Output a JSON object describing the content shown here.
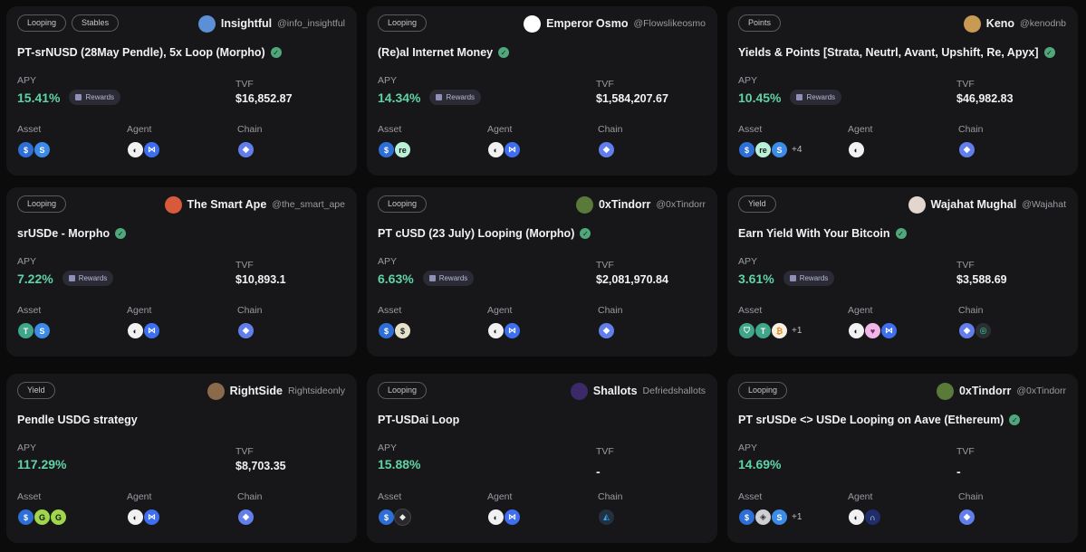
{
  "labels": {
    "apy": "APY",
    "tvf": "TVF",
    "asset": "Asset",
    "agent": "Agent",
    "chain": "Chain",
    "rewards": "Rewards"
  },
  "colors": {
    "apy_green": "#5fd3a6",
    "card_bg": "#17171a",
    "page_bg": "#0b0b0c",
    "verified": "#4fa77b"
  },
  "cards": [
    {
      "tags": [
        "Looping",
        "Stables"
      ],
      "author": "Insightful",
      "handle": "@info_insightful",
      "avatar_color": "#5b8fd6",
      "title": "PT-srNUSD (28May Pendle), 5x Loop (Morpho)",
      "verified": true,
      "apy": "15.41%",
      "rewards": true,
      "tvf": "$16,852.87",
      "assets": [
        "usd-coin-icon",
        "sr-usd-icon"
      ],
      "assets_more": "",
      "agents": [
        "agent-icon",
        "morpho-icon"
      ],
      "chains": [
        "ethereum-icon"
      ]
    },
    {
      "tags": [
        "Looping"
      ],
      "author": "Emperor Osmo",
      "handle": "@Flowslikeosmo",
      "avatar_color": "#ffffff",
      "title": "(Re)al Internet Money",
      "verified": true,
      "apy": "14.34%",
      "rewards": true,
      "tvf": "$1,584,207.67",
      "assets": [
        "usd-coin-icon",
        "re-icon"
      ],
      "assets_more": "",
      "agents": [
        "agent-icon",
        "morpho-icon"
      ],
      "chains": [
        "ethereum-icon"
      ]
    },
    {
      "tags": [
        "Points"
      ],
      "author": "Keno",
      "handle": "@kenodnb",
      "avatar_color": "#c89a52",
      "title": "Yields & Points [Strata, Neutrl, Avant, Upshift, Re, Apyx]",
      "verified": true,
      "apy": "10.45%",
      "rewards": true,
      "tvf": "$46,982.83",
      "assets": [
        "usd-coin-icon",
        "re-icon",
        "sr-usd-icon"
      ],
      "assets_more": "+4",
      "agents": [
        "agent-icon"
      ],
      "chains": [
        "ethereum-icon"
      ]
    },
    {
      "tags": [
        "Looping"
      ],
      "author": "The Smart Ape",
      "handle": "@the_smart_ape",
      "avatar_color": "#d95a3a",
      "title": "srUSDe - Morpho",
      "verified": true,
      "apy": "7.22%",
      "rewards": true,
      "tvf": "$10,893.1",
      "assets": [
        "tether-icon",
        "sr-usd-icon"
      ],
      "assets_more": "",
      "agents": [
        "agent-icon",
        "morpho-icon"
      ],
      "chains": [
        "ethereum-icon"
      ]
    },
    {
      "tags": [
        "Looping"
      ],
      "author": "0xTindorr",
      "handle": "@0xTindorr",
      "avatar_color": "#5a7a3a",
      "title": "PT cUSD (23 July) Looping (Morpho)",
      "verified": true,
      "apy": "6.63%",
      "rewards": true,
      "tvf": "$2,081,970.84",
      "assets": [
        "usd-coin-icon",
        "cusd-icon"
      ],
      "assets_more": "",
      "agents": [
        "agent-icon",
        "morpho-icon"
      ],
      "chains": [
        "ethereum-icon"
      ]
    },
    {
      "tags": [
        "Yield"
      ],
      "author": "Wajahat Mughal",
      "handle": "@Wajahat",
      "avatar_color": "#e2d6cf",
      "title": "Earn Yield With Your Bitcoin",
      "verified": true,
      "apy": "3.61%",
      "rewards": true,
      "tvf": "$3,588.69",
      "assets": [
        "green-token-icon",
        "tether-icon",
        "bitcoin-icon"
      ],
      "assets_more": "+1",
      "agents": [
        "agent-icon",
        "heart-agent-icon",
        "morpho-icon"
      ],
      "chains": [
        "ethereum-icon",
        "plume-icon"
      ]
    },
    {
      "tags": [
        "Yield"
      ],
      "author": "RightSide",
      "handle": "Rightsideonly",
      "avatar_color": "#8a6a4a",
      "title": "Pendle USDG strategy",
      "verified": false,
      "apy": "117.29%",
      "rewards": false,
      "tvf": "$8,703.35",
      "assets": [
        "usd-coin-icon",
        "green-g-icon",
        "green-g-icon"
      ],
      "assets_more": "",
      "agents": [
        "agent-icon",
        "morpho-icon"
      ],
      "chains": [
        "ethereum-icon"
      ]
    },
    {
      "tags": [
        "Looping"
      ],
      "author": "Shallots",
      "handle": "Defriedshallots",
      "avatar_color": "#3a2a6a",
      "title": "PT-USDai Loop",
      "verified": false,
      "apy": "15.88%",
      "rewards": false,
      "tvf": "-",
      "assets": [
        "usd-coin-icon",
        "usdai-icon"
      ],
      "assets_more": "",
      "agents": [
        "agent-icon",
        "morpho-icon"
      ],
      "chains": [
        "arbitrum-icon"
      ]
    },
    {
      "tags": [
        "Looping"
      ],
      "author": "0xTindorr",
      "handle": "@0xTindorr",
      "avatar_color": "#5a7a3a",
      "title": "PT srUSDe <> USDe Looping on Aave (Ethereum)",
      "verified": true,
      "apy": "14.69%",
      "rewards": false,
      "tvf": "-",
      "assets": [
        "usd-coin-icon",
        "ethena-icon",
        "sr-usd-icon"
      ],
      "assets_more": "+1",
      "agents": [
        "agent-icon",
        "aave-icon"
      ],
      "chains": [
        "ethereum-icon"
      ]
    }
  ]
}
